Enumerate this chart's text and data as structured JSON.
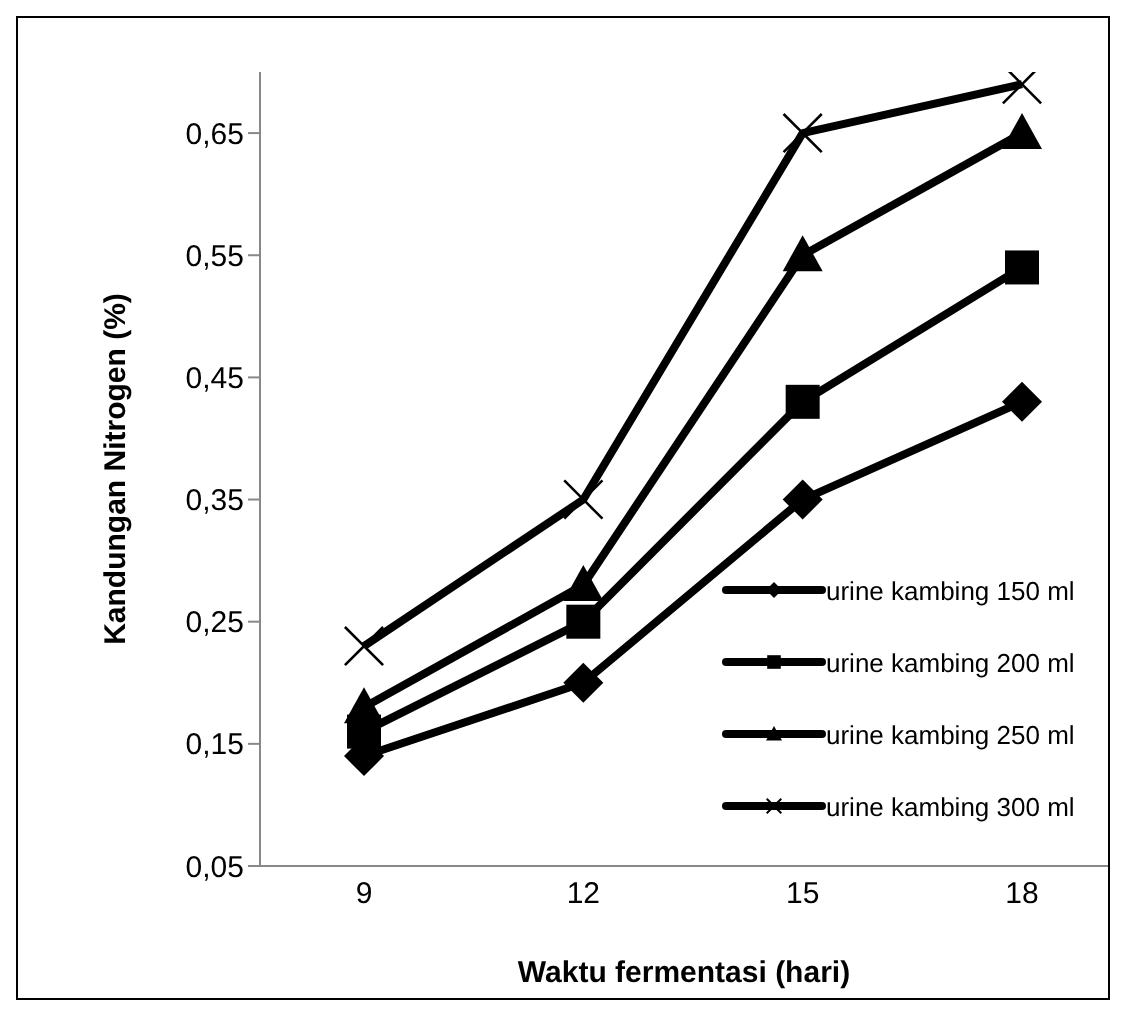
{
  "chart_data": {
    "type": "line",
    "xlabel": "Waktu fermentasi (hari)",
    "ylabel": "Kandungan Nitrogen (%)",
    "categories": [
      "9",
      "12",
      "15",
      "18"
    ],
    "series": [
      {
        "name": "urine kambing 150 ml",
        "color": "#000000",
        "marker": "diamond",
        "values": [
          0.14,
          0.2,
          0.35,
          0.43
        ]
      },
      {
        "name": "urine kambing 200 ml",
        "color": "#000000",
        "marker": "square",
        "values": [
          0.16,
          0.25,
          0.43,
          0.54
        ]
      },
      {
        "name": "urine kambing 250 ml",
        "color": "#000000",
        "marker": "triangle",
        "values": [
          0.18,
          0.28,
          0.55,
          0.65
        ]
      },
      {
        "name": "urine kambing 300 ml",
        "color": "#000000",
        "marker": "cross",
        "values": [
          0.23,
          0.35,
          0.65,
          0.69
        ]
      }
    ],
    "ylim": [
      0.05,
      0.7
    ],
    "yticks": [
      {
        "value": 0.05,
        "label": "0,05"
      },
      {
        "value": 0.15,
        "label": "0,15"
      },
      {
        "value": 0.25,
        "label": "0,25"
      },
      {
        "value": 0.35,
        "label": "0,35"
      },
      {
        "value": 0.45,
        "label": "0,45"
      },
      {
        "value": 0.55,
        "label": "0,55"
      },
      {
        "value": 0.65,
        "label": "0,65"
      }
    ],
    "grid": false,
    "legend": "bottom right",
    "line_style": "solid"
  }
}
